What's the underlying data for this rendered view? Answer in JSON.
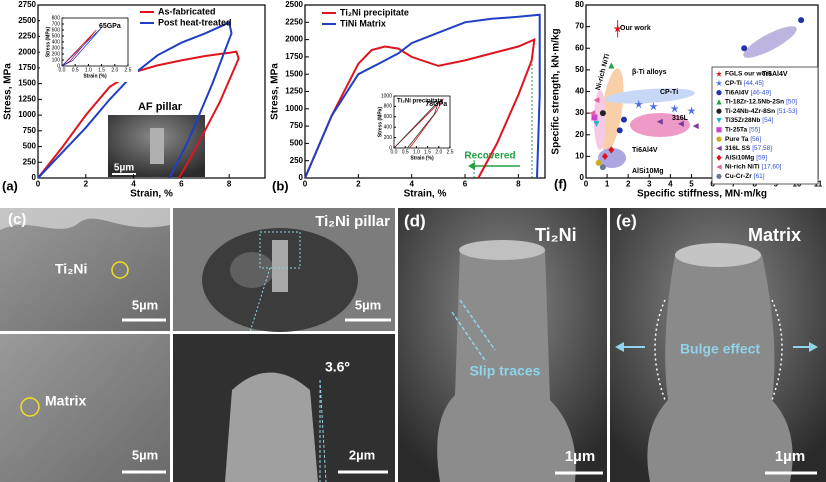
{
  "chart_data": [
    {
      "type": "line",
      "panel_label": "(a)",
      "xlabel": "Strain, %",
      "ylabel": "Stress, MPa",
      "xlim": [
        0,
        9.5
      ],
      "xticks": [
        0,
        2,
        4,
        6,
        8
      ],
      "ylim": [
        0,
        2750
      ],
      "yticks": [
        0,
        250,
        500,
        750,
        1000,
        1250,
        1500,
        1750,
        2000,
        2250,
        2500,
        2750
      ],
      "series": [
        {
          "name": "As-fabricated",
          "color": "#e0141e",
          "x": [
            0,
            1,
            2,
            3,
            4,
            5,
            6,
            7,
            8,
            8.3,
            8.4,
            7.6,
            6.5,
            5.9
          ],
          "values": [
            0,
            480,
            1000,
            1450,
            1680,
            1790,
            1870,
            1940,
            1990,
            2010,
            1900,
            1200,
            400,
            0
          ]
        },
        {
          "name": "Post heat-treated",
          "color": "#1f3fc4",
          "x": [
            0,
            1,
            2,
            3,
            4,
            5,
            6,
            7,
            8,
            8.1,
            7.3,
            6.3,
            5.5
          ],
          "values": [
            0,
            400,
            800,
            1250,
            1650,
            1950,
            2150,
            2300,
            2470,
            2300,
            1500,
            600,
            0
          ]
        }
      ],
      "annotations": [
        "AF pillar",
        "5µm"
      ],
      "inset": {
        "xlabel": "Strain (%)",
        "ylabel": "Stress (MPa)",
        "annotation": "65GPa",
        "xlim": [
          0,
          2.5
        ],
        "xticks": [
          {
            "value": 0,
            "label": "0.0"
          },
          {
            "value": 0.5,
            "label": "0.5"
          },
          {
            "value": 1,
            "label": "1.0"
          },
          {
            "value": 1.5,
            "label": "1.5"
          },
          {
            "value": 2,
            "label": "2.0"
          },
          {
            "value": 2.5,
            "label": "2.5"
          }
        ],
        "ylim": [
          0,
          800
        ],
        "yticks": [
          0,
          100,
          200,
          300,
          400,
          500,
          600,
          700,
          800
        ],
        "series": [
          {
            "color": "#e0141e",
            "x": [
              0,
              1.3,
              0.3,
              0
            ],
            "values": [
              0,
              600,
              80,
              0
            ]
          },
          {
            "color": "#1f3fc4",
            "x": [
              0,
              1.5,
              0.4,
              0
            ],
            "values": [
              0,
              640,
              90,
              0
            ]
          }
        ]
      }
    },
    {
      "type": "line",
      "panel_label": "(b)",
      "xlabel": "Strain, %",
      "ylabel": "Stress, MPa",
      "xlim": [
        0,
        9
      ],
      "xticks": [
        0,
        2,
        4,
        6,
        8
      ],
      "ylim": [
        0,
        2500
      ],
      "yticks": [
        0,
        250,
        500,
        750,
        1000,
        1250,
        1500,
        1750,
        2000,
        2250,
        2500
      ],
      "series": [
        {
          "name": "Ti₂Ni precipitate",
          "color": "#e0141e",
          "x": [
            0,
            1,
            2,
            2.5,
            3,
            3.5,
            4,
            5,
            6,
            7,
            8,
            8.6,
            8.5,
            8,
            7.2,
            6.5
          ],
          "values": [
            0,
            900,
            1650,
            1850,
            1900,
            1870,
            1750,
            1620,
            1700,
            1800,
            1900,
            2000,
            1700,
            1200,
            500,
            0
          ]
        },
        {
          "name": "TiNi Matrix",
          "color": "#1f3fc4",
          "x": [
            0,
            1,
            2,
            3,
            3.5,
            4,
            5,
            6,
            7,
            8,
            8.8,
            8.8,
            8.7
          ],
          "values": [
            0,
            900,
            1500,
            1700,
            1800,
            1950,
            2100,
            2250,
            2300,
            2330,
            2360,
            1200,
            0
          ]
        }
      ],
      "annotations": [
        "Recovered"
      ],
      "inset": {
        "title": "Ti₂Ni precipitate",
        "xlabel": "Strain (%)",
        "ylabel": "Stress (MPa)",
        "annotation": "78GPa",
        "xlim": [
          0,
          2.5
        ],
        "xticks": [
          {
            "value": 0,
            "label": "0.0"
          },
          {
            "value": 0.5,
            "label": "0.5"
          },
          {
            "value": 1,
            "label": "1.0"
          },
          {
            "value": 1.5,
            "label": "1.5"
          },
          {
            "value": 2,
            "label": "2.0"
          },
          {
            "value": 2.5,
            "label": "2.5"
          }
        ],
        "ylim": [
          0,
          1000
        ],
        "yticks": [
          0,
          200,
          400,
          600,
          800,
          1000
        ],
        "series": [
          {
            "color": "#e0141e",
            "x": [
              0,
              2.2,
              1.9,
              0.7
            ],
            "values": [
              0,
              950,
              700,
              0
            ]
          },
          {
            "color": "#333333",
            "x": [
              0,
              2.0,
              1.8,
              0.6
            ],
            "values": [
              0,
              900,
              650,
              0
            ]
          }
        ]
      }
    },
    {
      "type": "scatter",
      "panel_label": "(f)",
      "xlabel": "Specific stiffness, MN·m/kg",
      "ylabel": "Specific strength, kN·m/kg",
      "xlim": [
        0,
        11
      ],
      "xticks": [
        0,
        1,
        2,
        3,
        4,
        5,
        6,
        7,
        8,
        9,
        10,
        11
      ],
      "ylim": [
        0,
        80
      ],
      "yticks": [
        0,
        10,
        20,
        30,
        40,
        50,
        60,
        70,
        80
      ],
      "series": [
        {
          "name": "FGLS our work",
          "color": "#e0141e",
          "marker": "star",
          "x": [
            1.5
          ],
          "values": [
            69
          ],
          "errors": [
            4
          ]
        },
        {
          "name": "CP-Ti",
          "refs": "[44,45]",
          "color": "#4a6fe0",
          "marker": "star",
          "x": [
            2.5,
            3.2,
            4.2,
            5.0
          ],
          "values": [
            34,
            33,
            32,
            31
          ]
        },
        {
          "name": "Ti6Al4V",
          "refs": "[46-49]",
          "color": "#2233aa",
          "marker": "circle",
          "x": [
            7.5,
            10.2,
            1.6,
            1.8
          ],
          "values": [
            60,
            73,
            22,
            27
          ]
        },
        {
          "name": "Ti-18Zr-12.5Nb-2Sn",
          "refs": "[50]",
          "color": "#20a040",
          "marker": "triangle",
          "x": [
            1.2
          ],
          "values": [
            52
          ]
        },
        {
          "name": "Ti-24Nb-4Zr-8Sn",
          "refs": "[51-53]",
          "color": "#222222",
          "marker": "circle",
          "x": [
            0.8
          ],
          "values": [
            30
          ]
        },
        {
          "name": "Ti35Zr28Nb",
          "refs": "[54]",
          "color": "#20b8c8",
          "marker": "tridown",
          "x": [
            0.5
          ],
          "values": [
            25
          ]
        },
        {
          "name": "Ti-25Ta",
          "refs": "[55]",
          "color": "#d040d0",
          "marker": "square",
          "x": [
            0.4
          ],
          "values": [
            28
          ]
        },
        {
          "name": "Pure Ta",
          "refs": "[56]",
          "color": "#c8b020",
          "marker": "circle",
          "x": [
            0.6
          ],
          "values": [
            7
          ]
        },
        {
          "name": "316L SS",
          "refs": "[57,58]",
          "color": "#7a3aa0",
          "marker": "trileft",
          "x": [
            3.5,
            4.5,
            5.2
          ],
          "values": [
            26,
            25,
            24
          ]
        },
        {
          "name": "AlSi10Mg",
          "refs": "[59]",
          "color": "#e0141e",
          "marker": "diamond",
          "x": [
            0.9,
            1.2
          ],
          "values": [
            10,
            13
          ]
        },
        {
          "name": "Ni-rich NiTi",
          "refs": "[17,60]",
          "color": "#e060a0",
          "marker": "trileft",
          "x": [
            0.3,
            0.5
          ],
          "values": [
            30,
            36
          ]
        },
        {
          "name": "Cu-Cr-Zr",
          "refs": "[61]",
          "color": "#6a7a90",
          "marker": "circle",
          "x": [
            0.8
          ],
          "values": [
            5
          ]
        }
      ],
      "annotations": [
        "Our work",
        "Ti6Al4V",
        "β-Ti alloys",
        "Ni-rich NiTi",
        "CP-Ti",
        "316L",
        "Ti6Al4V",
        "AlSi10Mg"
      ]
    }
  ],
  "micrographs": {
    "c": {
      "label": "(c)",
      "tl": {
        "phase": "Ti₂Ni",
        "scale": "5µm"
      },
      "tr": {
        "title": "Ti₂Ni pillar",
        "scale": "5µm"
      },
      "bl": {
        "phase": "Matrix",
        "scale": "5µm"
      },
      "br": {
        "angle": "3.6º",
        "scale": "2µm"
      }
    },
    "d": {
      "label": "(d)",
      "title": "Ti₂Ni",
      "annotation": "Slip traces",
      "scale": "1µm"
    },
    "e": {
      "label": "(e)",
      "title": "Matrix",
      "annotation": "Bulge effect",
      "scale": "1µm"
    }
  }
}
